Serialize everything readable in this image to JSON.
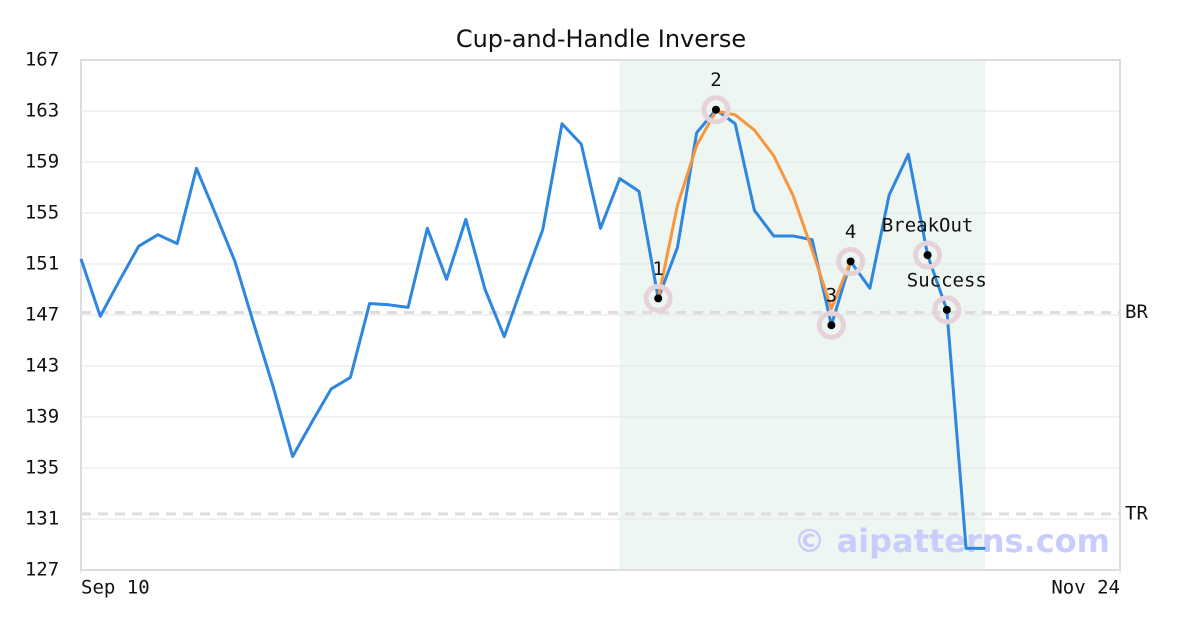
{
  "chart_data": {
    "type": "line",
    "title": "Cup-and-Handle Inverse",
    "watermark": "© aipatterns.com",
    "x": [
      0,
      1,
      2,
      3,
      4,
      5,
      6,
      7,
      8,
      9,
      10,
      11,
      12,
      13,
      14,
      15,
      16,
      17,
      18,
      19,
      20,
      21,
      22,
      23,
      24,
      25,
      26,
      27,
      28,
      29,
      30,
      31,
      32,
      33,
      34,
      35,
      36,
      37,
      38,
      39,
      40,
      41,
      42,
      43,
      44,
      45,
      46,
      47
    ],
    "xlim": [
      0,
      54
    ],
    "xticks": [
      {
        "value": 0,
        "label": "Sep 10"
      },
      {
        "value": 54,
        "label": "Nov 24"
      }
    ],
    "ylim": [
      127,
      167
    ],
    "yticks": [
      127,
      131,
      135,
      139,
      143,
      147,
      151,
      155,
      159,
      163,
      167
    ],
    "grid": true,
    "highlight": [
      28,
      47
    ],
    "highlight_color": "#eef6f2",
    "series": [
      {
        "color": "#2f86e0",
        "values": [
          151.4,
          146.9,
          149.7,
          152.4,
          153.3,
          152.6,
          158.5,
          154.9,
          151.2,
          146.2,
          141.3,
          135.9,
          138.6,
          141.2,
          142.1,
          147.9,
          147.8,
          147.6,
          153.8,
          149.8,
          154.5,
          149.0,
          145.3,
          149.6,
          153.7,
          162.0,
          160.4,
          153.8,
          157.7,
          156.7,
          148.3,
          152.3,
          161.3,
          163.1,
          162.0,
          155.2,
          153.2,
          153.2,
          152.9,
          146.2,
          151.2,
          149.1,
          156.4,
          159.6,
          151.7,
          147.4,
          128.7,
          128.7
        ]
      },
      {
        "color": "#f7963e",
        "values": [
          null,
          null,
          null,
          null,
          null,
          null,
          null,
          null,
          null,
          null,
          null,
          null,
          null,
          null,
          null,
          null,
          null,
          null,
          null,
          null,
          null,
          null,
          null,
          null,
          null,
          null,
          null,
          null,
          null,
          null,
          148.3,
          155.6,
          160.3,
          163.0,
          162.7,
          161.5,
          159.5,
          156.4,
          152.1,
          147.5,
          151.2,
          null,
          null,
          null,
          null,
          null,
          null,
          null
        ]
      }
    ],
    "points": [
      {
        "label": "1",
        "x": 30,
        "y": 148.3
      },
      {
        "label": "2",
        "x": 33,
        "y": 163.1
      },
      {
        "label": "3",
        "x": 39,
        "y": 146.2
      },
      {
        "label": "4",
        "x": 40,
        "y": 151.2
      },
      {
        "label": "BreakOut",
        "x": 44,
        "y": 151.7
      },
      {
        "label": "Success",
        "x": 45,
        "y": 147.4
      }
    ],
    "reference_lines": [
      {
        "label": "BR",
        "value": 147.2
      },
      {
        "label": "TR",
        "value": 131.4
      }
    ]
  }
}
